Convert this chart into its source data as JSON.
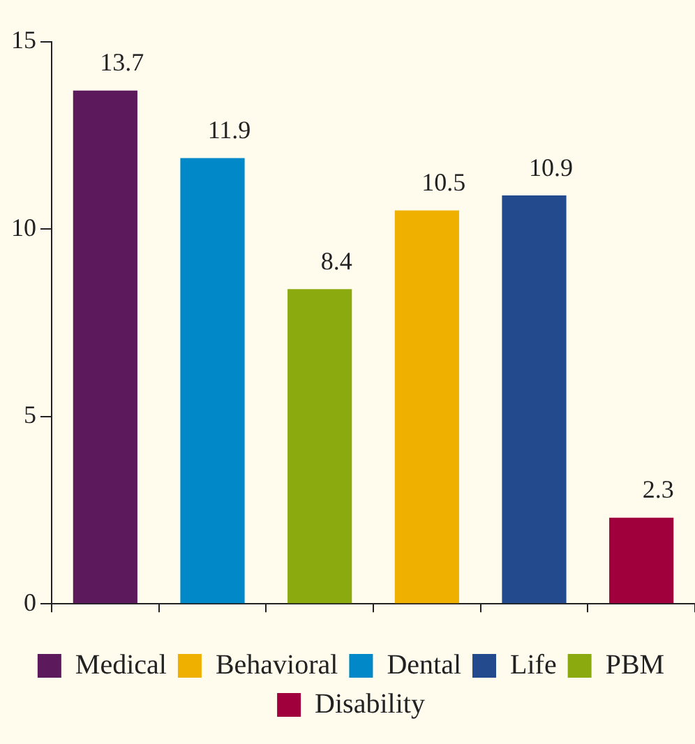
{
  "chart_data": {
    "type": "bar",
    "categories": [
      null,
      null,
      null,
      null,
      null,
      null
    ],
    "series": [
      {
        "name": "Medical",
        "color": "#5c1a5c",
        "values": [
          13.7,
          null,
          null,
          null,
          null,
          null
        ]
      },
      {
        "name": "Dental",
        "color": "#0088c8",
        "values": [
          null,
          11.9,
          null,
          null,
          null,
          null
        ]
      },
      {
        "name": "PBM",
        "color": "#8aaa10",
        "values": [
          null,
          null,
          8.4,
          null,
          null,
          null
        ]
      },
      {
        "name": "Behavioral",
        "color": "#f0b000",
        "values": [
          null,
          null,
          null,
          10.5,
          null,
          null
        ]
      },
      {
        "name": "Life",
        "color": "#234a8c",
        "values": [
          null,
          null,
          null,
          null,
          10.9,
          null
        ]
      },
      {
        "name": "Disability",
        "color": "#a0003c",
        "values": [
          null,
          null,
          null,
          null,
          null,
          2.3
        ]
      }
    ],
    "ylim": [
      0,
      15
    ],
    "yticks": [
      0,
      5,
      10,
      15
    ],
    "grid": false,
    "legend": "bottom",
    "data_labels": true
  }
}
